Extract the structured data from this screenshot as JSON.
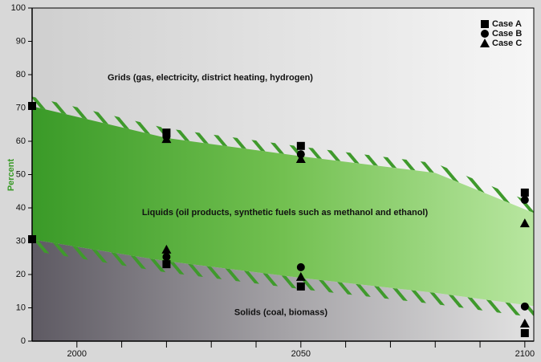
{
  "chart_data": {
    "type": "scenario-band",
    "y_label": "Percent",
    "xlim": [
      1990,
      2102
    ],
    "ylim": [
      0,
      100
    ],
    "xticks": [
      2000,
      2050,
      2100
    ],
    "x_minor_ticks": [
      2010,
      2020,
      2030,
      2040,
      2060,
      2070,
      2080,
      2090
    ],
    "yticks": [
      0,
      10,
      20,
      30,
      40,
      50,
      60,
      70,
      80,
      90,
      100
    ],
    "regions": {
      "grids": "Grids (gas, electricity, district heating, hydrogen)",
      "liquids": "Liquids (oil products, synthetic fuels such as methanol and ethanol)",
      "solids": "Solids (coal, biomass)"
    },
    "liquids_band": {
      "x": [
        1990,
        2020,
        2050,
        2080,
        2102
      ],
      "upper": [
        70.5,
        61,
        55.5,
        50.5,
        38.5
      ],
      "lower": [
        30.5,
        24,
        19,
        14.5,
        10.5
      ]
    },
    "series": [
      {
        "name": "Case A",
        "marker": "square",
        "x": [
          1990,
          2020,
          2050,
          2100
        ],
        "upper": [
          70.6,
          62.6,
          58.6,
          44.6
        ],
        "lower": [
          30.6,
          23.1,
          16.4,
          2.4
        ]
      },
      {
        "name": "Case B",
        "marker": "circle",
        "x": [
          2020,
          2050,
          2100
        ],
        "upper": [
          61.4,
          56.1,
          42.4
        ],
        "lower": [
          25.3,
          22.2,
          10.4
        ]
      },
      {
        "name": "Case C",
        "marker": "triangle",
        "x": [
          2020,
          2050,
          2100
        ],
        "upper": [
          60.7,
          54.7,
          35.4
        ],
        "lower": [
          27.5,
          19.3,
          5.3
        ]
      }
    ]
  }
}
